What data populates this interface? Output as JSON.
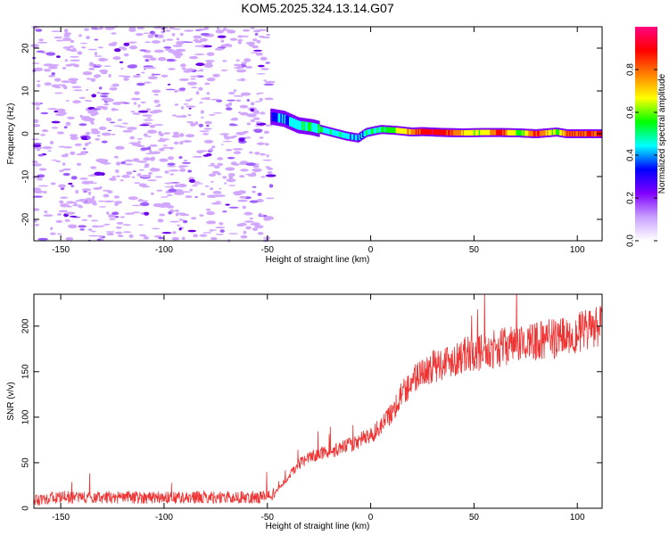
{
  "figure_title": "KOM5.2025.324.13.14.G07",
  "chart_data": [
    {
      "type": "heatmap",
      "title": "KOM5.2025.324.13.14.G07",
      "xlabel": "Height of straight line (km)",
      "ylabel": "Frequency (Hz)",
      "xlim": [
        -163,
        112
      ],
      "ylim": [
        -25,
        25
      ],
      "xticks": [
        -150,
        -100,
        -50,
        0,
        50,
        100
      ],
      "yticks": [
        -20,
        -10,
        0,
        10,
        20
      ],
      "colorbar": {
        "label": "Normalized spectral amplitude",
        "range": [
          0,
          1
        ],
        "ticks": [
          0.0,
          0.2,
          0.4,
          0.6,
          0.8
        ],
        "colors": [
          "#ffffff",
          "#c8a0ff",
          "#8000ff",
          "#0000ff",
          "#00ffff",
          "#00ff00",
          "#ffff00",
          "#ff8000",
          "#ff0000",
          "#ff0080"
        ]
      },
      "ridge": [
        {
          "x": -48,
          "y": 4.0,
          "amp": 0.3
        },
        {
          "x": -42,
          "y": 3.5,
          "amp": 0.4
        },
        {
          "x": -35,
          "y": 2.0,
          "amp": 0.45
        },
        {
          "x": -28,
          "y": 1.5,
          "amp": 0.5
        },
        {
          "x": -20,
          "y": 0.5,
          "amp": 0.45
        },
        {
          "x": -12,
          "y": -0.5,
          "amp": 0.45
        },
        {
          "x": -6,
          "y": -1.0,
          "amp": 0.4
        },
        {
          "x": -2,
          "y": 0.3,
          "amp": 0.45
        },
        {
          "x": 5,
          "y": 1.0,
          "amp": 0.5
        },
        {
          "x": 12,
          "y": 0.8,
          "amp": 0.6
        },
        {
          "x": 20,
          "y": 0.4,
          "amp": 0.75
        },
        {
          "x": 25,
          "y": 0.5,
          "amp": 0.88
        },
        {
          "x": 35,
          "y": 0.3,
          "amp": 0.9
        },
        {
          "x": 45,
          "y": 0.2,
          "amp": 0.7
        },
        {
          "x": 55,
          "y": 0.3,
          "amp": 0.6
        },
        {
          "x": 62,
          "y": 0.3,
          "amp": 0.92
        },
        {
          "x": 72,
          "y": 0.2,
          "amp": 0.55
        },
        {
          "x": 80,
          "y": 0.0,
          "amp": 0.88
        },
        {
          "x": 90,
          "y": 0.4,
          "amp": 0.55
        },
        {
          "x": 95,
          "y": 0.0,
          "amp": 0.8
        },
        {
          "x": 112,
          "y": 0.0,
          "amp": 0.85
        }
      ]
    },
    {
      "type": "line",
      "xlabel": "Height of straight line (km)",
      "ylabel": "SNR (v/v)",
      "xlim": [
        -163,
        112
      ],
      "ylim": [
        0,
        235
      ],
      "xticks": [
        -150,
        -100,
        -50,
        0,
        50,
        100
      ],
      "yticks": [
        0,
        50,
        100,
        150,
        200
      ],
      "color": "#ee3333",
      "series": [
        {
          "name": "SNR",
          "x": [
            -163,
            -150,
            -130,
            -110,
            -90,
            -70,
            -55,
            -48,
            -42,
            -38,
            -34,
            -30,
            -25,
            -20,
            -15,
            -10,
            -5,
            0,
            5,
            10,
            15,
            20,
            25,
            35,
            45,
            55,
            65,
            75,
            85,
            95,
            105,
            112
          ],
          "y": [
            10,
            12,
            12,
            12,
            12,
            12,
            12,
            14,
            28,
            40,
            50,
            55,
            60,
            62,
            65,
            70,
            75,
            80,
            90,
            105,
            125,
            140,
            150,
            160,
            168,
            172,
            178,
            182,
            185,
            190,
            195,
            200
          ]
        }
      ]
    }
  ]
}
